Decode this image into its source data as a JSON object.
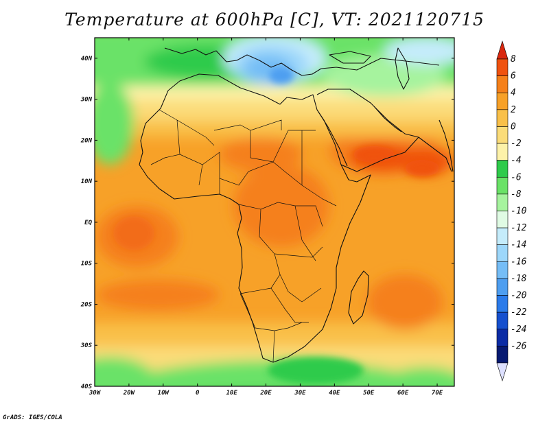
{
  "title": "Temperature at 600hPa [C], VT: 2021120715",
  "credit": "GrADS: IGES/COLA",
  "map": {
    "lon_range": [
      -30,
      75
    ],
    "lat_range": [
      -40,
      45
    ],
    "lon_ticks": [
      {
        "value": -30,
        "label": "30W"
      },
      {
        "value": -20,
        "label": "20W"
      },
      {
        "value": -10,
        "label": "10W"
      },
      {
        "value": 0,
        "label": "0"
      },
      {
        "value": 10,
        "label": "10E"
      },
      {
        "value": 20,
        "label": "20E"
      },
      {
        "value": 30,
        "label": "30E"
      },
      {
        "value": 40,
        "label": "40E"
      },
      {
        "value": 50,
        "label": "50E"
      },
      {
        "value": 60,
        "label": "60E"
      },
      {
        "value": 70,
        "label": "70E"
      }
    ],
    "lat_ticks": [
      {
        "value": 40,
        "label": "40N"
      },
      {
        "value": 30,
        "label": "30N"
      },
      {
        "value": 20,
        "label": "20N"
      },
      {
        "value": 10,
        "label": "10N"
      },
      {
        "value": 0,
        "label": "EQ"
      },
      {
        "value": -10,
        "label": "10S"
      },
      {
        "value": -20,
        "label": "20S"
      },
      {
        "value": -30,
        "label": "30S"
      },
      {
        "value": -40,
        "label": "40S"
      }
    ]
  },
  "colorbar": {
    "labels": [
      "8",
      "6",
      "4",
      "2",
      "0",
      "-2",
      "-4",
      "-6",
      "-8",
      "-10",
      "-12",
      "-14",
      "-16",
      "-18",
      "-20",
      "-22",
      "-24",
      "-26"
    ],
    "colors": [
      "#d9270e",
      "#f0520f",
      "#f5801a",
      "#f7a128",
      "#f9c049",
      "#fbdc79",
      "#fdf2a9",
      "#2fcb4b",
      "#6ae267",
      "#a6f39e",
      "#e0fbe4",
      "#c5ecfb",
      "#9dd7fa",
      "#75bdf6",
      "#4e9ef0",
      "#2b7bea",
      "#1650ce",
      "#0b2ca5",
      "#071a72",
      "#dde0ff"
    ]
  }
}
